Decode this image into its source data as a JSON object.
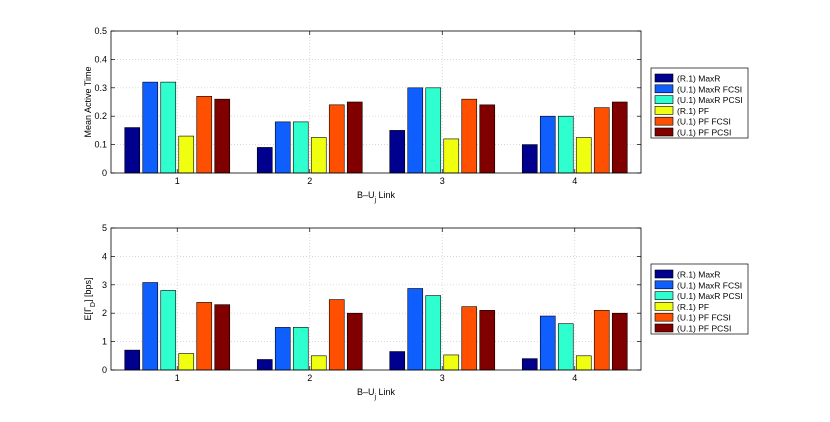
{
  "chart_data": [
    {
      "type": "bar",
      "title": "",
      "xlabel": "B–U",
      "xlabel_sub": "j",
      "xlabel_suffix": " Link",
      "ylabel": "Mean Active Time",
      "ylim": [
        0,
        0.5
      ],
      "yticks": [
        "0",
        "0.1",
        "0.2",
        "0.3",
        "0.4",
        "0.5"
      ],
      "categories": [
        "1",
        "2",
        "3",
        "4"
      ],
      "grid": true,
      "legend_position": "outside-right",
      "series": [
        {
          "name": "(R.1) MaxR",
          "color": "#00008f",
          "values": [
            0.16,
            0.09,
            0.15,
            0.1
          ]
        },
        {
          "name": "(U.1) MaxR FCSI",
          "color": "#0f5fff",
          "values": [
            0.32,
            0.18,
            0.3,
            0.2
          ]
        },
        {
          "name": "(U.1) MaxR PCSI",
          "color": "#2fffcf",
          "values": [
            0.32,
            0.18,
            0.3,
            0.2
          ]
        },
        {
          "name": "(R.1) PF",
          "color": "#efff0f",
          "values": [
            0.13,
            0.125,
            0.12,
            0.125
          ]
        },
        {
          "name": "(U.1) PF FCSI",
          "color": "#ff4f00",
          "values": [
            0.27,
            0.24,
            0.26,
            0.23
          ]
        },
        {
          "name": "(U.1) PF PCSI",
          "color": "#800000",
          "values": [
            0.26,
            0.25,
            0.24,
            0.25
          ]
        }
      ]
    },
    {
      "type": "bar",
      "title": "",
      "xlabel": "B–U",
      "xlabel_sub": "j",
      "xlabel_suffix": " Link",
      "ylabel": "E[Γ",
      "ylabel_sub": "D",
      "ylabel_suffix": "] [bps]",
      "ylim": [
        0,
        5
      ],
      "yticks": [
        "0",
        "1",
        "2",
        "3",
        "4",
        "5"
      ],
      "categories": [
        "1",
        "2",
        "3",
        "4"
      ],
      "grid": true,
      "legend_position": "outside-right",
      "series": [
        {
          "name": "(R.1) MaxR",
          "color": "#00008f",
          "values": [
            0.7,
            0.37,
            0.65,
            0.4
          ]
        },
        {
          "name": "(U.1) MaxR FCSI",
          "color": "#0f5fff",
          "values": [
            3.08,
            1.5,
            2.87,
            1.9
          ]
        },
        {
          "name": "(U.1) MaxR PCSI",
          "color": "#2fffcf",
          "values": [
            2.8,
            1.5,
            2.62,
            1.63
          ]
        },
        {
          "name": "(R.1) PF",
          "color": "#efff0f",
          "values": [
            0.58,
            0.5,
            0.53,
            0.5
          ]
        },
        {
          "name": "(U.1) PF FCSI",
          "color": "#ff4f00",
          "values": [
            2.38,
            2.48,
            2.23,
            2.1
          ]
        },
        {
          "name": "(U.1) PF PCSI",
          "color": "#800000",
          "values": [
            2.3,
            2.0,
            2.1,
            2.0
          ]
        }
      ]
    }
  ]
}
